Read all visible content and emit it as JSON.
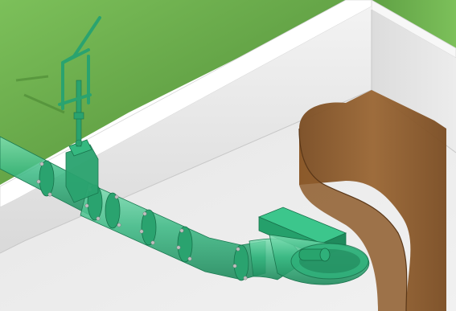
{
  "image": {
    "subject": "isometric-pipe-gate-valve-illustration",
    "palette": {
      "grass": "#6aa64a",
      "grass_dark": "#4e8a35",
      "concrete": "#e9e9e9",
      "concrete_shade": "#cfcfcf",
      "concrete_edge": "#ffffff",
      "soil": "#8a5a2b",
      "soil_dark": "#6b4320",
      "pipe_green": "#2fb07a",
      "pipe_green_dark": "#1f8a5c",
      "pipe_green_light": "#7fe0b4",
      "bolt": "#b8b8b8"
    }
  }
}
